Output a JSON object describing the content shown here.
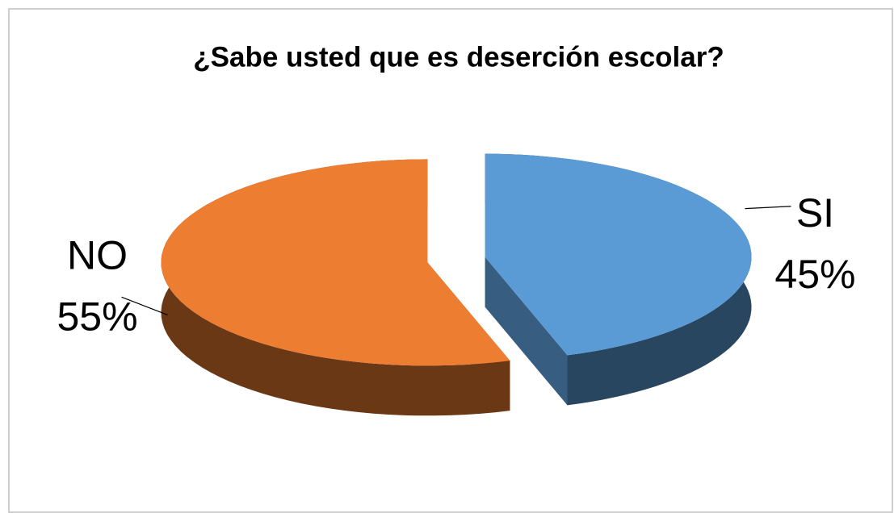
{
  "chart_data": {
    "type": "pie",
    "title": "¿Sabe usted que es deserción escolar?",
    "categories": [
      "SI",
      "NO"
    ],
    "values": [
      45,
      55
    ],
    "value_labels": [
      "45%",
      "55%"
    ],
    "colors": [
      "#5b9bd5",
      "#ed7d31"
    ]
  }
}
